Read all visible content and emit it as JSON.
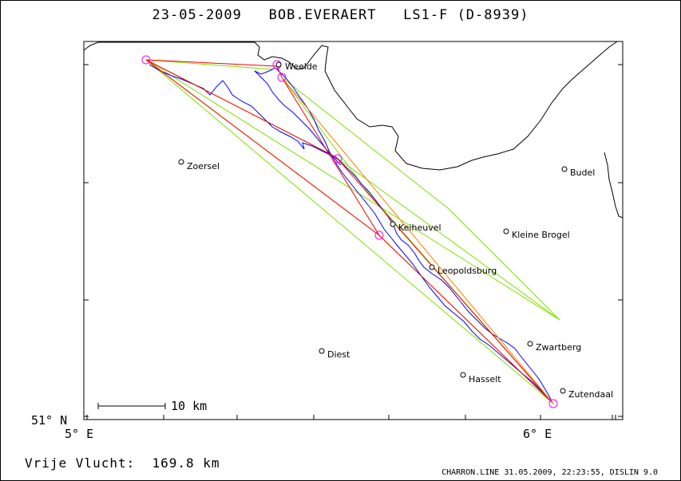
{
  "header": {
    "date": "23-05-2009",
    "pilot": "BOB.EVERAERT",
    "glider": "LS1-F (D-8939)"
  },
  "axes": {
    "lat_label": "51° N",
    "lon_labels": [
      "5° E",
      "6° E"
    ]
  },
  "scale_bar": {
    "label": "10 km"
  },
  "towns": [
    {
      "name": "Weelde"
    },
    {
      "name": "Zoersel"
    },
    {
      "name": "Budel"
    },
    {
      "name": "Keiheuvel"
    },
    {
      "name": "Kleine Brogel"
    },
    {
      "name": "Leopoldsburg"
    },
    {
      "name": "Diest"
    },
    {
      "name": "Zwartberg"
    },
    {
      "name": "Hasselt"
    },
    {
      "name": "Zutendaal"
    }
  ],
  "summary": {
    "distance_label": "Vrije Vlucht:",
    "distance_value": "169.8 km"
  },
  "footer": {
    "text": "CHARRON.LINE 31.05.2009, 22:23:55, DISLIN 9.0"
  },
  "colors": {
    "track": "#0000ff",
    "task": "#ff0000",
    "sector": "#80e000",
    "turnpoint": "#ff00ff",
    "leg": "#ff8000",
    "border": "#000000"
  }
}
